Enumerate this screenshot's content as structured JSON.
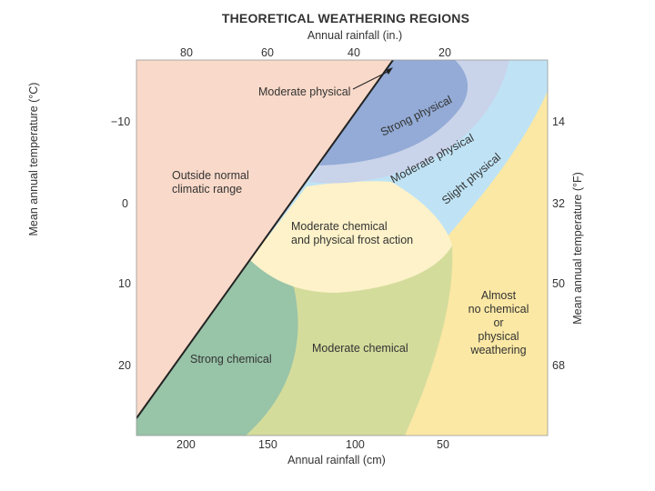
{
  "title": "THEORETICAL WEATHERING REGIONS",
  "axes": {
    "top_label": "Annual rainfall (in.)",
    "bottom_label": "Annual rainfall (cm)",
    "left_label": "Mean annual temperature (°C)",
    "right_label": "Mean annual temperature (°F)",
    "top_ticks": [
      "80",
      "60",
      "40",
      "20"
    ],
    "bottom_ticks": [
      "200",
      "150",
      "100",
      "50"
    ],
    "left_ticks": [
      "−10",
      "0",
      "10",
      "20"
    ],
    "right_ticks": [
      "14",
      "32",
      "50",
      "68"
    ]
  },
  "regions": {
    "outside": [
      "Outside normal",
      "climatic range"
    ],
    "moderate_physical_arrow": "Moderate physical",
    "strong_physical": "Strong physical",
    "moderate_physical": "Moderate physical",
    "slight_physical": "Slight physical",
    "frost": [
      "Moderate chemical",
      "and physical frost action"
    ],
    "strong_chemical": "Strong chemical",
    "moderate_chemical": "Moderate chemical",
    "almost_none": [
      "Almost",
      "no chemical",
      "or",
      "physical",
      "weathering"
    ]
  },
  "colors": {
    "outside": "#f9d9c9",
    "strong_physical": "#93abd6",
    "moderate_physical": "#c9d3ea",
    "slight_physical": "#bfe3f5",
    "frost": "#fdf2c9",
    "strong_chemical": "#98c4a8",
    "moderate_chemical": "#d4dc9c",
    "almost_none": "#fbe8a4",
    "border": "#222222"
  }
}
